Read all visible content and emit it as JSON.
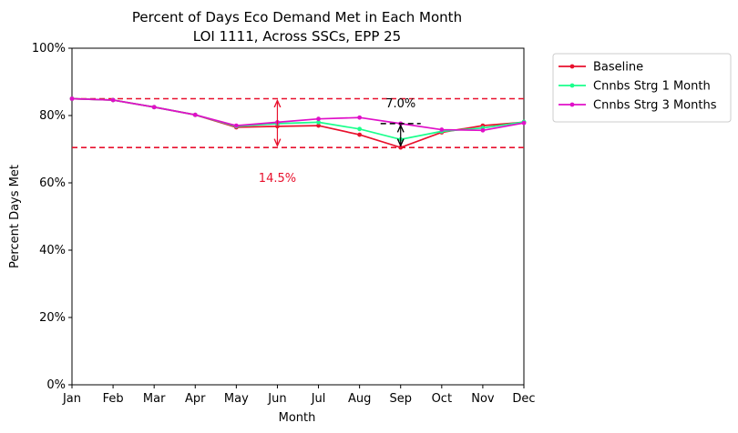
{
  "chart_data": {
    "type": "line",
    "title": "Percent of Days Eco Demand Met in Each Month",
    "subtitle": "LOI 1111, Across SSCs, EPP 25",
    "xlabel": "Month",
    "ylabel": "Percent Days Met",
    "categories": [
      "Jan",
      "Feb",
      "Mar",
      "Apr",
      "May",
      "Jun",
      "Jul",
      "Aug",
      "Sep",
      "Oct",
      "Nov",
      "Dec"
    ],
    "ylim": [
      0,
      100
    ],
    "yticks": [
      "0%",
      "20%",
      "40%",
      "60%",
      "80%",
      "100%"
    ],
    "grid": false,
    "legend_position": "outside-top-right",
    "series": [
      {
        "name": "Baseline",
        "color": "#e8112d",
        "values": [
          85.0,
          84.6,
          82.5,
          80.2,
          76.5,
          76.8,
          77.0,
          74.3,
          70.5,
          75.0,
          77.0,
          78.0
        ]
      },
      {
        "name": "Cnnbs Strg 1 Month",
        "color": "#1aff8c",
        "values": [
          85.0,
          84.6,
          82.5,
          80.2,
          76.8,
          77.6,
          78.0,
          76.0,
          72.9,
          75.3,
          76.3,
          78.1
        ]
      },
      {
        "name": "Cnnbs Strg 3 Months",
        "color": "#e010c8",
        "values": [
          85.0,
          84.6,
          82.5,
          80.2,
          77.0,
          78.0,
          79.0,
          79.4,
          77.6,
          75.8,
          75.6,
          77.8
        ]
      }
    ],
    "reference_lines": [
      {
        "y": 85.0,
        "color": "#e8112d",
        "style": "dashed"
      },
      {
        "y": 70.5,
        "color": "#e8112d",
        "style": "dashed"
      }
    ],
    "annotations": [
      {
        "text": "14.5%",
        "color": "#e8112d",
        "x": "Jun",
        "y_from": 70.5,
        "y_to": 85.0
      },
      {
        "text": "7.0%",
        "color": "#000000",
        "x": "Sep",
        "y_from": 70.5,
        "y_to": 77.6
      }
    ]
  }
}
